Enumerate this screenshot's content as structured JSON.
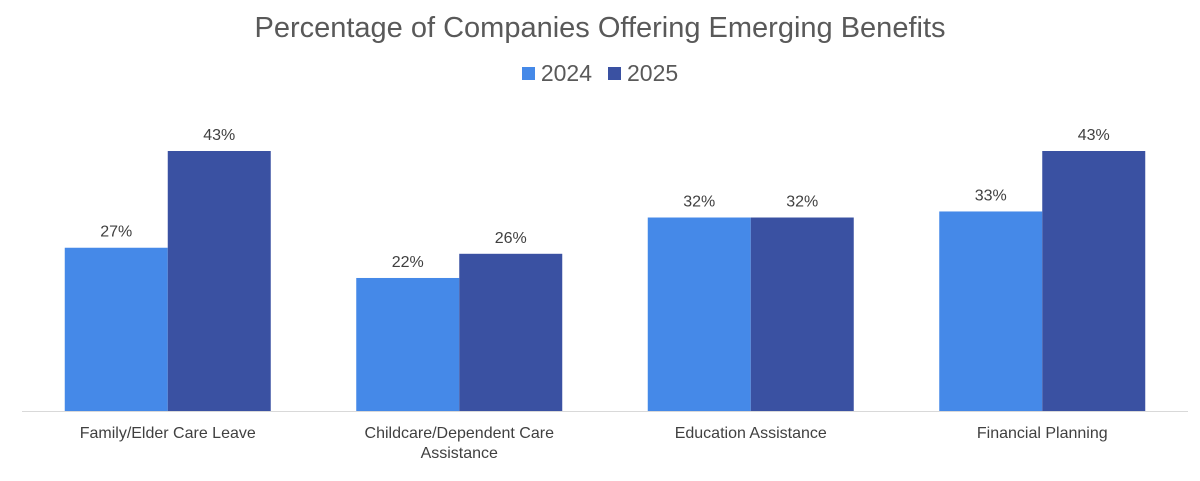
{
  "chart_data": {
    "type": "bar",
    "title": "Percentage of Companies Offering Emerging Benefits",
    "categories": [
      "Family/Elder Care Leave",
      "Childcare/Dependent Care Assistance",
      "Education Assistance",
      "Financial Planning"
    ],
    "series": [
      {
        "name": "2024",
        "values": [
          27,
          22,
          32,
          33
        ],
        "labels": [
          "27%",
          "22%",
          "32%",
          "33%"
        ],
        "color": "#4589E8"
      },
      {
        "name": "2025",
        "values": [
          43,
          26,
          32,
          43
        ],
        "labels": [
          "43%",
          "26%",
          "32%",
          "43%"
        ],
        "color": "#3A51A2"
      }
    ],
    "ylim": [
      0,
      43
    ],
    "grid": false,
    "legend_position": "top-center"
  }
}
